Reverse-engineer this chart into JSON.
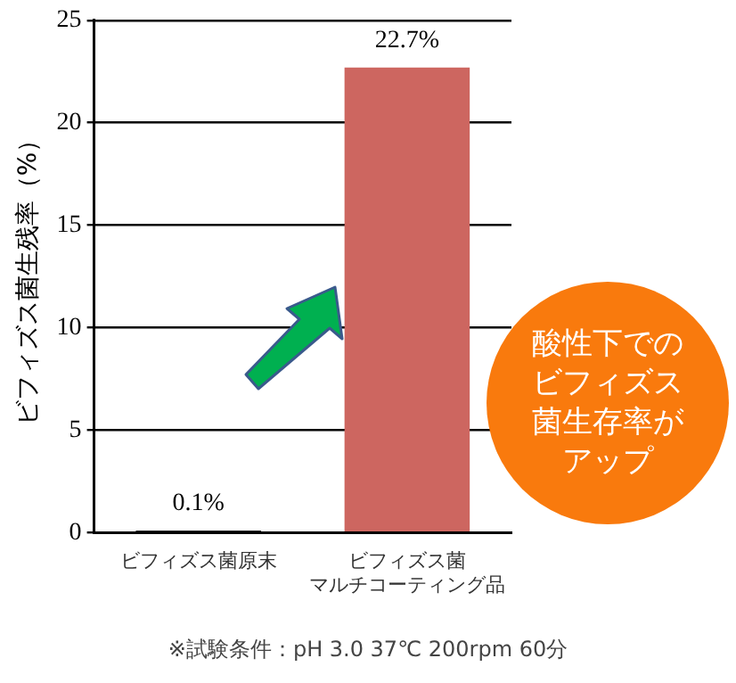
{
  "chart_data": {
    "type": "bar",
    "ylabel": "ビフィズス菌生残率（%）",
    "categories": [
      "ビフィズス菌原末",
      "ビフィズス菌マルチコーティング品"
    ],
    "values": [
      0.1,
      22.7
    ],
    "colors": [
      "#222222",
      "#cd6660"
    ],
    "value_labels": [
      "0.1%",
      "22.7%"
    ],
    "ylim": [
      0,
      25
    ],
    "yticks": [
      0,
      5,
      10,
      15,
      20,
      25
    ],
    "grid": "y",
    "legend": false,
    "annotations": [
      "酸性下でのビフィズス菌生存率がアップ",
      "※試験条件：pH 3.0 37℃ 200rpm 60分"
    ]
  }
}
